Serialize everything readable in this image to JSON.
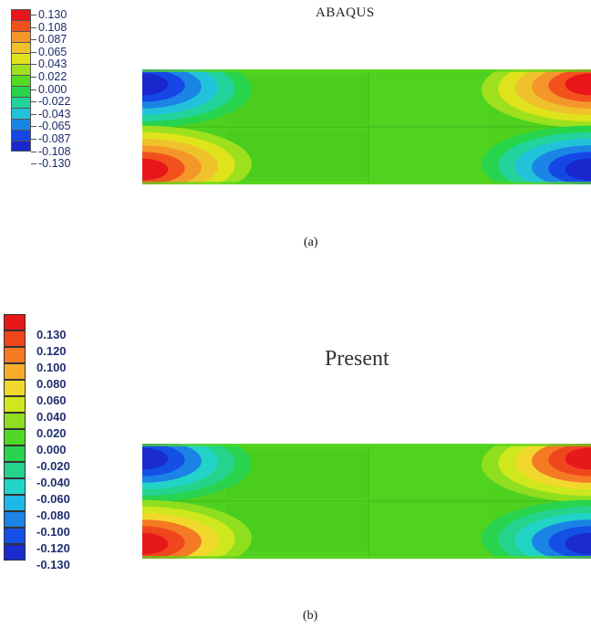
{
  "panel_a": {
    "title": "ABAQUS",
    "caption": "(a)",
    "legend": {
      "labels": [
        "0.130",
        "0.108",
        "0.087",
        "0.065",
        "0.043",
        "0.022",
        "0.000",
        "-0.022",
        "-0.043",
        "-0.065",
        "-0.087",
        "-0.108",
        "-0.130"
      ],
      "colors": [
        "#e8161a",
        "#f2511e",
        "#f5962a",
        "#efc22c",
        "#dfe31c",
        "#9ee01e",
        "#53da23",
        "#27d44c",
        "#23d39c",
        "#22c3da",
        "#1b85e6",
        "#1547e6",
        "#1a27cc"
      ]
    }
  },
  "panel_b": {
    "title": "Present",
    "caption": "(b)",
    "legend": {
      "labels": [
        "0.130",
        "0.120",
        "0.100",
        "0.080",
        "0.060",
        "0.040",
        "0.020",
        "0.000",
        "-0.020",
        "-0.040",
        "-0.060",
        "-0.080",
        "-0.100",
        "-0.120",
        "-0.130"
      ],
      "colors": [
        "#e6181a",
        "#f0461e",
        "#f57a24",
        "#f7ad2a",
        "#f2d82c",
        "#cfe71d",
        "#8fdf1f",
        "#4fd925",
        "#29d34d",
        "#24d38c",
        "#22d4c7",
        "#1fb8e6",
        "#1b83e6",
        "#1550e6",
        "#1a2ccc"
      ]
    }
  },
  "colors": {
    "field_green": "#4fd21f",
    "field_green_dark": "#47c91c",
    "red": "#e8161a",
    "blue": "#1a27cc"
  }
}
